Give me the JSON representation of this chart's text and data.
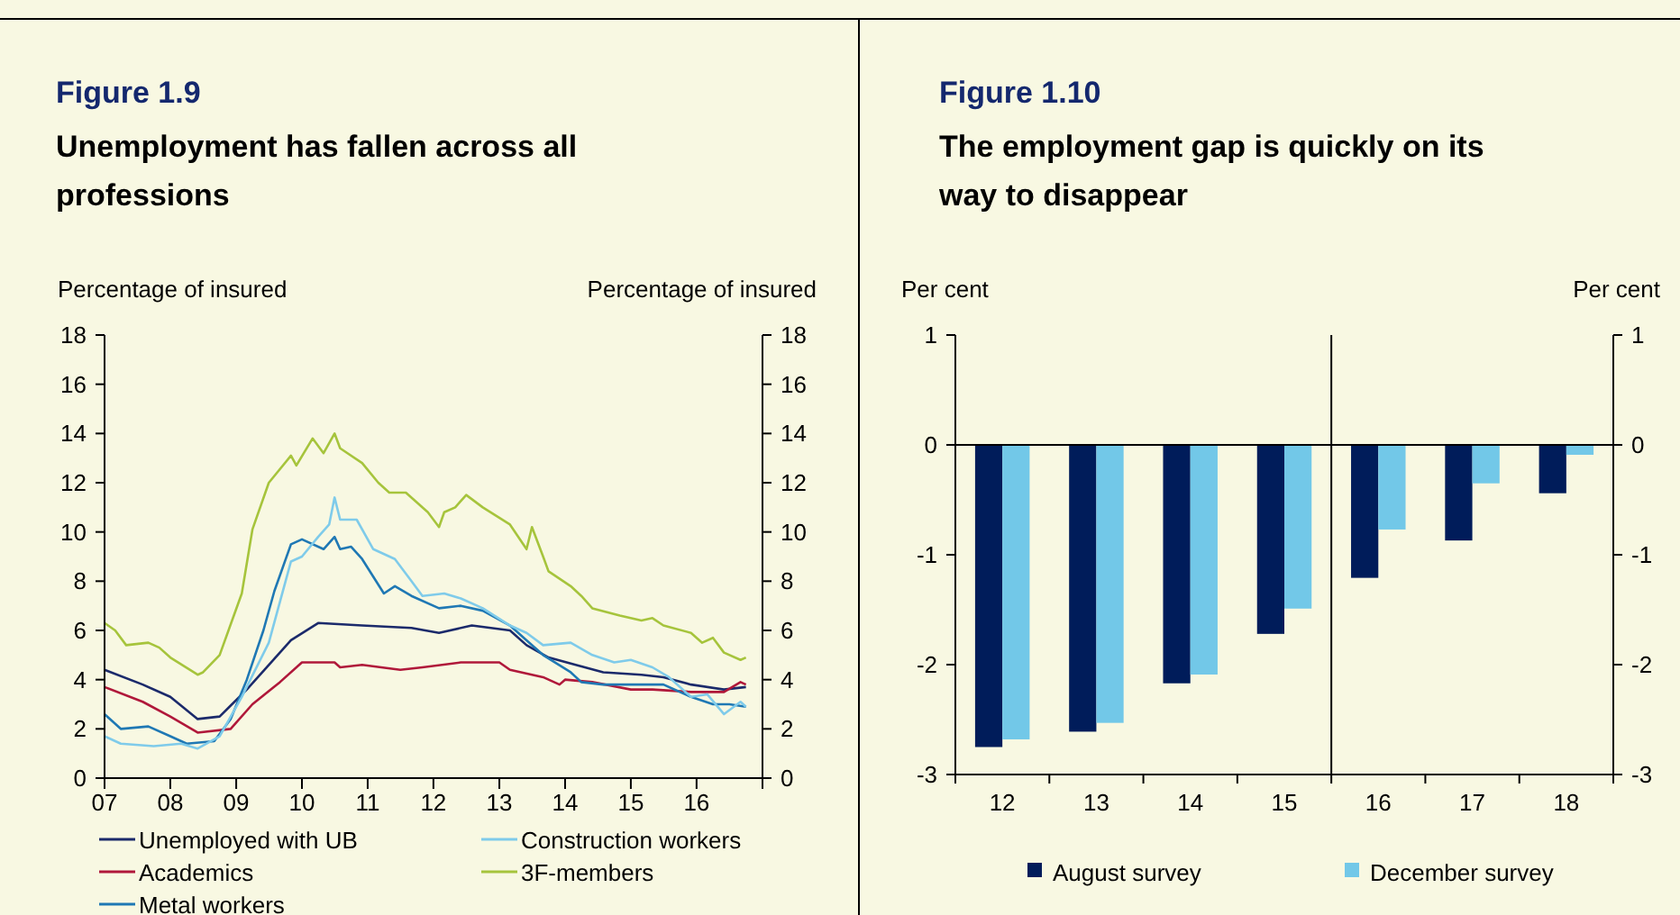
{
  "chart_data": [
    {
      "type": "line",
      "title": "Figure 1.9",
      "subtitle": "Unemployment has fallen across all professions",
      "ylabel": "Percentage of insured",
      "y2label": "Percentage of insured",
      "xlim": [
        "2007-01",
        "2017-01"
      ],
      "xticks": [
        {
          "value": "2007-01",
          "label": "07"
        },
        {
          "value": "2008-01",
          "label": "08"
        },
        {
          "value": "2009-01",
          "label": "09"
        },
        {
          "value": "2010-01",
          "label": "10"
        },
        {
          "value": "2011-01",
          "label": "11"
        },
        {
          "value": "2012-01",
          "label": "12"
        },
        {
          "value": "2013-01",
          "label": "13"
        },
        {
          "value": "2014-01",
          "label": "14"
        },
        {
          "value": "2015-01",
          "label": "15"
        },
        {
          "value": "2016-01",
          "label": "16"
        },
        {
          "value": "2017-01",
          "label": null
        }
      ],
      "ylim": [
        0,
        18
      ],
      "yticks": [
        0,
        2,
        4,
        6,
        8,
        10,
        12,
        14,
        16,
        18
      ],
      "y2lim": [
        0,
        18
      ],
      "y2ticks": [
        0,
        2,
        4,
        6,
        8,
        10,
        12,
        14,
        16,
        18
      ],
      "grid": false,
      "legend": "bottom",
      "line_style": "solid",
      "marker": "none",
      "series": [
        {
          "name": "Unemployed with UB",
          "color": "#1b2a6b",
          "x": [
            "2007-01",
            "2007-08",
            "2008-01",
            "2008-06",
            "2008-10",
            "2009-03",
            "2009-07",
            "2009-11",
            "2010-04",
            "2010-12",
            "2011-09",
            "2012-02",
            "2012-08",
            "2013-03",
            "2013-06",
            "2013-10",
            "2014-03",
            "2014-08",
            "2015-03",
            "2015-07",
            "2015-12",
            "2016-06",
            "2016-10"
          ],
          "values": [
            4.4,
            3.8,
            3.3,
            2.4,
            2.5,
            3.6,
            4.6,
            5.6,
            6.3,
            6.2,
            6.1,
            5.9,
            6.2,
            6.0,
            5.4,
            4.9,
            4.6,
            4.3,
            4.2,
            4.1,
            3.8,
            3.6,
            3.7
          ]
        },
        {
          "name": "Academics",
          "color": "#b0183a",
          "x": [
            "2007-01",
            "2007-08",
            "2008-01",
            "2008-06",
            "2008-12",
            "2009-04",
            "2009-09",
            "2010-01",
            "2010-07",
            "2010-08",
            "2010-12",
            "2011-07",
            "2011-11",
            "2012-06",
            "2013-01",
            "2013-03",
            "2013-09",
            "2013-12",
            "2014-01",
            "2014-06",
            "2015-01",
            "2015-05",
            "2015-12",
            "2016-06",
            "2016-09",
            "2016-10"
          ],
          "values": [
            3.7,
            3.1,
            2.5,
            1.85,
            2.0,
            3.0,
            3.9,
            4.7,
            4.7,
            4.5,
            4.6,
            4.4,
            4.5,
            4.7,
            4.7,
            4.4,
            4.1,
            3.8,
            4.0,
            3.9,
            3.6,
            3.6,
            3.5,
            3.5,
            3.9,
            3.8
          ]
        },
        {
          "name": "Metal workers",
          "color": "#1f78b4",
          "x": [
            "2007-01",
            "2007-04",
            "2007-09",
            "2008-01",
            "2008-04",
            "2008-09",
            "2008-12",
            "2009-03",
            "2009-06",
            "2009-08",
            "2009-11",
            "2010-01",
            "2010-05",
            "2010-07",
            "2010-08",
            "2010-10",
            "2010-12",
            "2011-04",
            "2011-06",
            "2011-09",
            "2012-02",
            "2012-06",
            "2012-10",
            "2013-03",
            "2013-06",
            "2013-09",
            "2014-02",
            "2014-04",
            "2014-08",
            "2015-03",
            "2015-07",
            "2015-12",
            "2016-04",
            "2016-07",
            "2016-10"
          ],
          "values": [
            2.6,
            2.0,
            2.1,
            1.7,
            1.4,
            1.5,
            2.4,
            4.0,
            6.0,
            7.6,
            9.5,
            9.7,
            9.3,
            9.8,
            9.3,
            9.4,
            8.9,
            7.5,
            7.8,
            7.4,
            6.9,
            7.0,
            6.8,
            6.2,
            5.6,
            5.0,
            4.3,
            3.9,
            3.8,
            3.8,
            3.8,
            3.3,
            3.0,
            3.0,
            2.9
          ]
        },
        {
          "name": "Construction workers",
          "color": "#7fcbea",
          "x": [
            "2007-01",
            "2007-04",
            "2007-10",
            "2008-03",
            "2008-06",
            "2008-10",
            "2009-02",
            "2009-07",
            "2009-11",
            "2010-01",
            "2010-04",
            "2010-06",
            "2010-07",
            "2010-08",
            "2010-11",
            "2011-02",
            "2011-06",
            "2011-09",
            "2011-11",
            "2012-03",
            "2012-06",
            "2012-10",
            "2013-03",
            "2013-06",
            "2013-09",
            "2014-02",
            "2014-06",
            "2014-10",
            "2015-01",
            "2015-05",
            "2015-08",
            "2015-12",
            "2016-03",
            "2016-06",
            "2016-09",
            "2016-10"
          ],
          "values": [
            1.7,
            1.4,
            1.3,
            1.4,
            1.2,
            1.7,
            3.3,
            5.5,
            8.8,
            9.0,
            9.8,
            10.3,
            11.4,
            10.5,
            10.5,
            9.3,
            8.9,
            8.0,
            7.4,
            7.5,
            7.3,
            6.9,
            6.2,
            5.9,
            5.4,
            5.5,
            5.0,
            4.7,
            4.8,
            4.5,
            4.1,
            3.3,
            3.4,
            2.6,
            3.1,
            2.9
          ]
        },
        {
          "name": "3F-members",
          "color": "#a6c43c",
          "x": [
            "2007-01",
            "2007-03",
            "2007-05",
            "2007-09",
            "2007-11",
            "2008-01",
            "2008-06",
            "2008-07",
            "2008-10",
            "2009-02",
            "2009-04",
            "2009-07",
            "2009-11",
            "2009-12",
            "2010-03",
            "2010-05",
            "2010-07",
            "2010-08",
            "2010-12",
            "2011-03",
            "2011-05",
            "2011-08",
            "2011-12",
            "2012-02",
            "2012-03",
            "2012-05",
            "2012-07",
            "2012-10",
            "2013-03",
            "2013-06",
            "2013-07",
            "2013-09",
            "2013-10",
            "2014-02",
            "2014-04",
            "2014-06",
            "2014-11",
            "2015-03",
            "2015-05",
            "2015-07",
            "2015-12",
            "2016-02",
            "2016-04",
            "2016-06",
            "2016-09",
            "2016-10"
          ],
          "values": [
            6.3,
            6.0,
            5.4,
            5.5,
            5.3,
            4.9,
            4.2,
            4.3,
            5.0,
            7.5,
            10.1,
            12.0,
            13.1,
            12.7,
            13.8,
            13.2,
            14.0,
            13.4,
            12.8,
            12.0,
            11.6,
            11.6,
            10.8,
            10.2,
            10.8,
            11.0,
            11.5,
            11.0,
            10.3,
            9.3,
            10.2,
            9.0,
            8.4,
            7.8,
            7.4,
            6.9,
            6.6,
            6.4,
            6.5,
            6.2,
            5.9,
            5.5,
            5.7,
            5.1,
            4.8,
            4.9
          ]
        }
      ]
    },
    {
      "type": "bar",
      "title": "Figure 1.10",
      "subtitle": "The employment gap is quickly on its way to disappear",
      "ylabel": "Per cent",
      "y2label": "Per cent",
      "categories": [
        "12",
        "13",
        "14",
        "15",
        "16",
        "17",
        "18"
      ],
      "ylim": [
        -3,
        1
      ],
      "yticks": [
        -3,
        -2,
        -1,
        0,
        1
      ],
      "y2lim": [
        -3,
        1
      ],
      "y2ticks": [
        -3,
        -2,
        -1,
        0,
        1
      ],
      "legend": "bottom",
      "series": [
        {
          "name": "August survey",
          "color": "#001c5a",
          "values": [
            -2.75,
            -2.61,
            -2.17,
            -1.72,
            -1.21,
            -0.87,
            -0.44
          ]
        },
        {
          "name": "December survey",
          "color": "#72c8e8",
          "values": [
            -2.68,
            -2.53,
            -2.09,
            -1.49,
            -0.77,
            -0.35,
            -0.09
          ]
        }
      ]
    }
  ]
}
